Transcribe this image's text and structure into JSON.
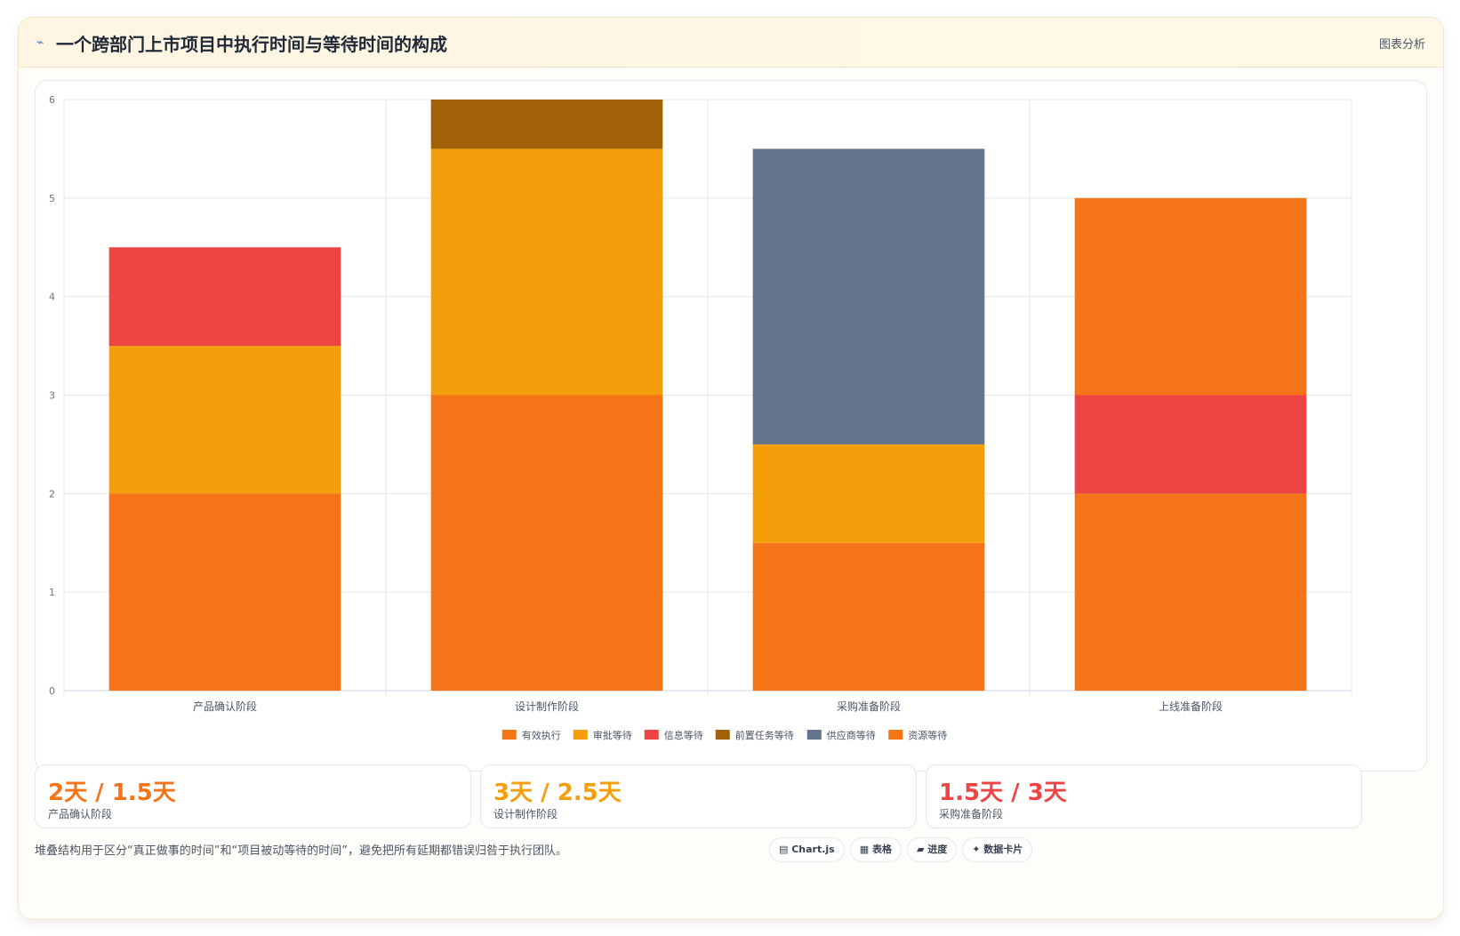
{
  "header": {
    "title": "一个跨部门上市项目中执行时间与等待时间的构成",
    "action": "图表分析"
  },
  "colors": {
    "effective": "#f57418",
    "approval": "#f49e0b",
    "info": "#ef4444",
    "pretask": "#a16207",
    "supplier": "#64748b",
    "resource": "#f57418"
  },
  "chart_data": {
    "type": "bar",
    "stacked": true,
    "categories": [
      "产品确认阶段",
      "设计制作阶段",
      "采购准备阶段",
      "上线准备阶段"
    ],
    "series": [
      {
        "name": "有效执行",
        "color": "#f57418",
        "values": [
          2,
          3,
          1.5,
          2
        ]
      },
      {
        "name": "审批等待",
        "color": "#f49e0b",
        "values": [
          1.5,
          2.5,
          1,
          0
        ]
      },
      {
        "name": "信息等待",
        "color": "#ef4444",
        "values": [
          1,
          0,
          0,
          1
        ]
      },
      {
        "name": "前置任务等待",
        "color": "#a16207",
        "values": [
          0,
          0.5,
          0,
          0
        ]
      },
      {
        "name": "供应商等待",
        "color": "#64748b",
        "values": [
          0,
          0,
          3,
          0
        ]
      },
      {
        "name": "资源等待",
        "color": "#f57418",
        "values": [
          0,
          0,
          0,
          2
        ]
      }
    ],
    "ylim": [
      0,
      6
    ],
    "yticks": [
      0,
      1,
      2,
      3,
      4,
      5,
      6
    ],
    "grid": true,
    "legend": "bottom"
  },
  "stats": [
    {
      "value": "2天 / 1.5天",
      "label": "产品确认阶段",
      "color": "#f57418"
    },
    {
      "value": "3天 / 2.5天",
      "label": "设计制作阶段",
      "color": "#f49e0b"
    },
    {
      "value": "1.5天 / 3天",
      "label": "采购准备阶段",
      "color": "#ef4444"
    }
  ],
  "footer": {
    "note": "堆叠结构用于区分“真正做事的时间”和“项目被动等待的时间”，避免把所有延期都错误归咎于执行团队。",
    "pills": [
      "▤ Chart.js",
      "▦ 表格",
      "▰ 进度",
      "✦ 数据卡片"
    ]
  }
}
